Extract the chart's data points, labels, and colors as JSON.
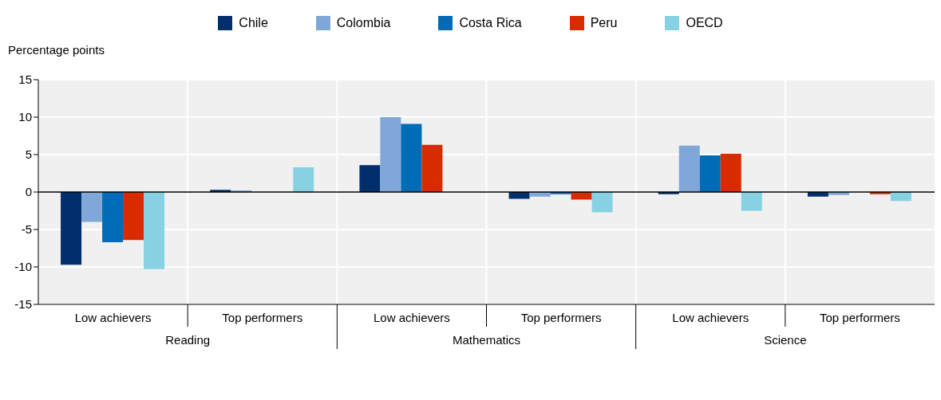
{
  "chart_data": {
    "type": "bar",
    "ylabel": "Percentage points",
    "categories": [
      "Low achievers",
      "Top performers",
      "Low achievers",
      "Top performers",
      "Low achievers",
      "Top performers"
    ],
    "annotations": [
      "Reading",
      "Mathematics",
      "Science"
    ],
    "series": [
      {
        "name": "Chile",
        "color": "#002f6c",
        "values": [
          -9.7,
          0.3,
          3.6,
          -0.9,
          -0.3,
          -0.6
        ]
      },
      {
        "name": "Colombia",
        "color": "#7fa8d9",
        "values": [
          -4.0,
          0.2,
          10.0,
          -0.6,
          6.2,
          -0.4
        ]
      },
      {
        "name": "Costa Rica",
        "color": "#006bb6",
        "values": [
          -6.7,
          null,
          9.1,
          -0.3,
          4.9,
          0
        ]
      },
      {
        "name": "Peru",
        "color": "#d82b00",
        "values": [
          -6.4,
          0,
          6.3,
          -1.0,
          5.1,
          -0.3
        ]
      },
      {
        "name": "OECD",
        "color": "#86d2e3",
        "values": [
          -10.3,
          3.3,
          0,
          -2.7,
          -2.5,
          -1.2
        ]
      }
    ],
    "ylim": [
      -15,
      15
    ],
    "yticks": [
      -15,
      -10,
      -5,
      0,
      5,
      10,
      15
    ],
    "grid": true,
    "legend": "top"
  }
}
